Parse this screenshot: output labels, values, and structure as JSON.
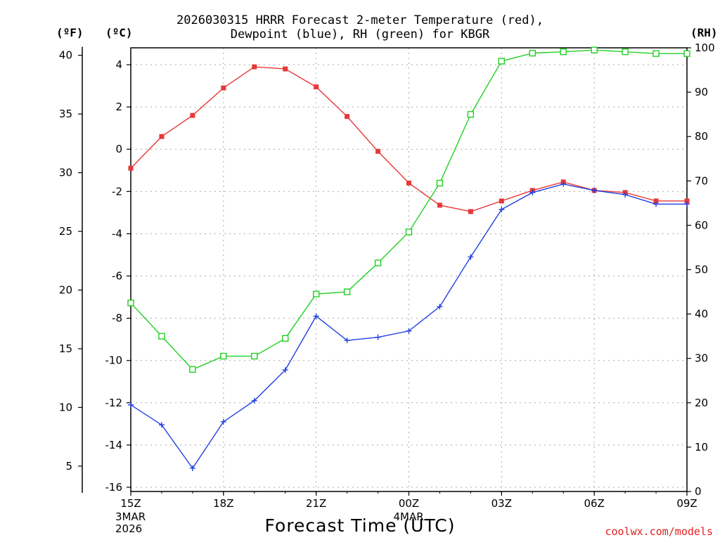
{
  "title": {
    "line1": "2026030315 HRRR Forecast 2-meter Temperature (red),",
    "line2": "Dewpoint (blue), RH (green) for KBGR"
  },
  "axis_units": {
    "fahrenheit": "(ºF)",
    "celsius": "(ºC)",
    "rh": "(RH)"
  },
  "xlabel": "Forecast Time (UTC)",
  "credit": "coolwx.com/models",
  "colors": {
    "temperature": "#e83838",
    "dewpoint": "#2040e0",
    "rh": "#20d020",
    "grid": "#aaaaaa"
  },
  "chart_data": {
    "type": "line",
    "title": "2026030315 HRRR Forecast 2-meter Temperature (red), Dewpoint (blue), RH (green) for KBGR",
    "xlabel": "Forecast Time (UTC)",
    "x_hours": [
      0,
      1,
      2,
      3,
      4,
      5,
      6,
      7,
      8,
      9,
      10,
      11,
      12,
      13,
      14,
      15,
      16,
      17,
      18
    ],
    "x_ticks": [
      {
        "hour": 0,
        "label": "15Z",
        "sub": [
          "3MAR",
          "2026"
        ]
      },
      {
        "hour": 3,
        "label": "18Z",
        "sub": []
      },
      {
        "hour": 6,
        "label": "21Z",
        "sub": []
      },
      {
        "hour": 9,
        "label": "00Z",
        "sub": [
          "4MAR"
        ]
      },
      {
        "hour": 12,
        "label": "03Z",
        "sub": []
      },
      {
        "hour": 15,
        "label": "06Z",
        "sub": []
      },
      {
        "hour": 18,
        "label": "09Z",
        "sub": []
      }
    ],
    "y_celsius": {
      "range": [
        -16.2,
        4.8
      ],
      "ticks": [
        4,
        2,
        0,
        -2,
        -4,
        -6,
        -8,
        -10,
        -12,
        -14,
        -16
      ]
    },
    "y_fahrenheit": {
      "ticks": [
        40,
        35,
        30,
        25,
        20,
        15,
        10,
        5
      ]
    },
    "y_rh": {
      "range": [
        0,
        100
      ],
      "ticks": [
        100,
        90,
        80,
        70,
        60,
        50,
        40,
        30,
        20,
        10,
        0
      ]
    },
    "series": [
      {
        "name": "Temperature",
        "axis": "celsius",
        "marker": "filled-square",
        "values": [
          -0.9,
          0.6,
          1.6,
          2.9,
          3.9,
          3.8,
          2.95,
          1.55,
          -0.1,
          -1.6,
          -2.65,
          -2.95,
          -2.45,
          -1.95,
          -1.55,
          -1.95,
          -2.05,
          -2.45,
          -2.45
        ]
      },
      {
        "name": "Dewpoint",
        "axis": "celsius",
        "marker": "plus",
        "values": [
          -12.1,
          -13.05,
          -15.1,
          -12.9,
          -11.9,
          -10.45,
          -7.9,
          -9.05,
          -8.9,
          -8.6,
          -7.45,
          -5.1,
          -2.85,
          -2.05,
          -1.65,
          -1.95,
          -2.15,
          -2.6,
          -2.6
        ]
      },
      {
        "name": "RH",
        "axis": "rh",
        "marker": "open-square",
        "values": [
          42.5,
          35,
          27.5,
          30.5,
          30.5,
          34.5,
          44.5,
          45,
          51.5,
          58.5,
          69.5,
          85,
          97,
          98.8,
          99.1,
          99.5,
          99.1,
          98.7,
          98.7
        ]
      }
    ]
  }
}
